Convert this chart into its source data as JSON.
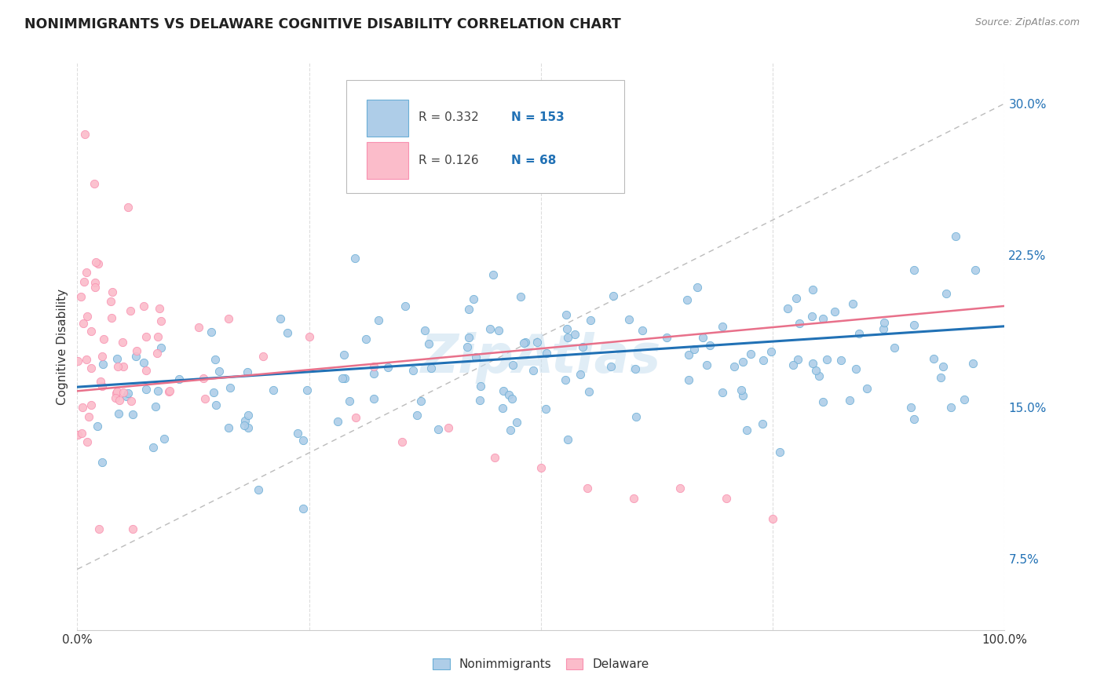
{
  "title": "NONIMMIGRANTS VS DELAWARE COGNITIVE DISABILITY CORRELATION CHART",
  "source": "Source: ZipAtlas.com",
  "ylabel": "Cognitive Disability",
  "xlim": [
    0,
    1.0
  ],
  "ylim": [
    0.04,
    0.32
  ],
  "y_ticks_right": [
    0.075,
    0.15,
    0.225,
    0.3
  ],
  "y_tick_labels_right": [
    "7.5%",
    "15.0%",
    "22.5%",
    "30.0%"
  ],
  "legend_blue_label": "Nonimmigrants",
  "legend_pink_label": "Delaware",
  "R_blue": 0.332,
  "N_blue": 153,
  "R_pink": 0.126,
  "N_pink": 68,
  "blue_fill_color": "#aecde8",
  "blue_edge_color": "#6aaed6",
  "pink_fill_color": "#fbbcca",
  "pink_edge_color": "#f990b0",
  "blue_line_color": "#2171b5",
  "pink_line_color": "#e8708a",
  "gray_dash_color": "#bbbbbb",
  "background_color": "#ffffff",
  "grid_color": "#dddddd",
  "watermark": "ZipAtlas",
  "watermark_color": "#c8dff0",
  "title_color": "#222222",
  "source_color": "#888888",
  "label_color": "#333333",
  "right_tick_color": "#2171b5"
}
